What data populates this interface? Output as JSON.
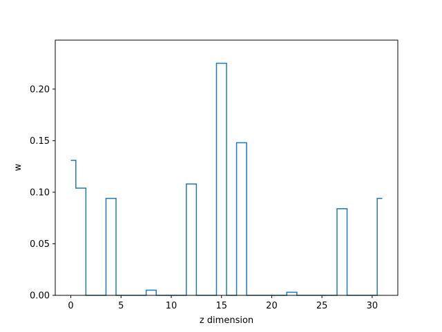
{
  "chart_data": {
    "type": "line",
    "drawstyle": "steps-mid",
    "title": "",
    "xlabel": "z dimension",
    "ylabel": "w",
    "xlim": [
      -1.55,
      32.55
    ],
    "ylim": [
      0,
      0.2475
    ],
    "xticks": [
      0,
      5,
      10,
      15,
      20,
      25,
      30
    ],
    "xtick_labels": [
      "0",
      "5",
      "10",
      "15",
      "20",
      "25",
      "30"
    ],
    "yticks": [
      0.0,
      0.05,
      0.1,
      0.15,
      0.2
    ],
    "ytick_labels": [
      "0.00",
      "0.05",
      "0.10",
      "0.15",
      "0.20"
    ],
    "grid": false,
    "series": [
      {
        "color": "#1f77b4",
        "x": [
          0,
          1,
          2,
          3,
          4,
          5,
          6,
          7,
          8,
          9,
          10,
          11,
          12,
          13,
          14,
          15,
          16,
          17,
          18,
          19,
          20,
          21,
          22,
          23,
          24,
          25,
          26,
          27,
          28,
          29,
          30,
          31
        ],
        "y": [
          0.131,
          0.104,
          0.0,
          0.0,
          0.094,
          0.0,
          0.0,
          0.0,
          0.005,
          0.0,
          0.0,
          0.0,
          0.108,
          0.0,
          0.0,
          0.225,
          0.0,
          0.148,
          0.0,
          0.0,
          0.0,
          0.0,
          0.003,
          0.0,
          0.0,
          0.0,
          0.0,
          0.084,
          0.0,
          0.0,
          0.0,
          0.094
        ]
      }
    ]
  }
}
